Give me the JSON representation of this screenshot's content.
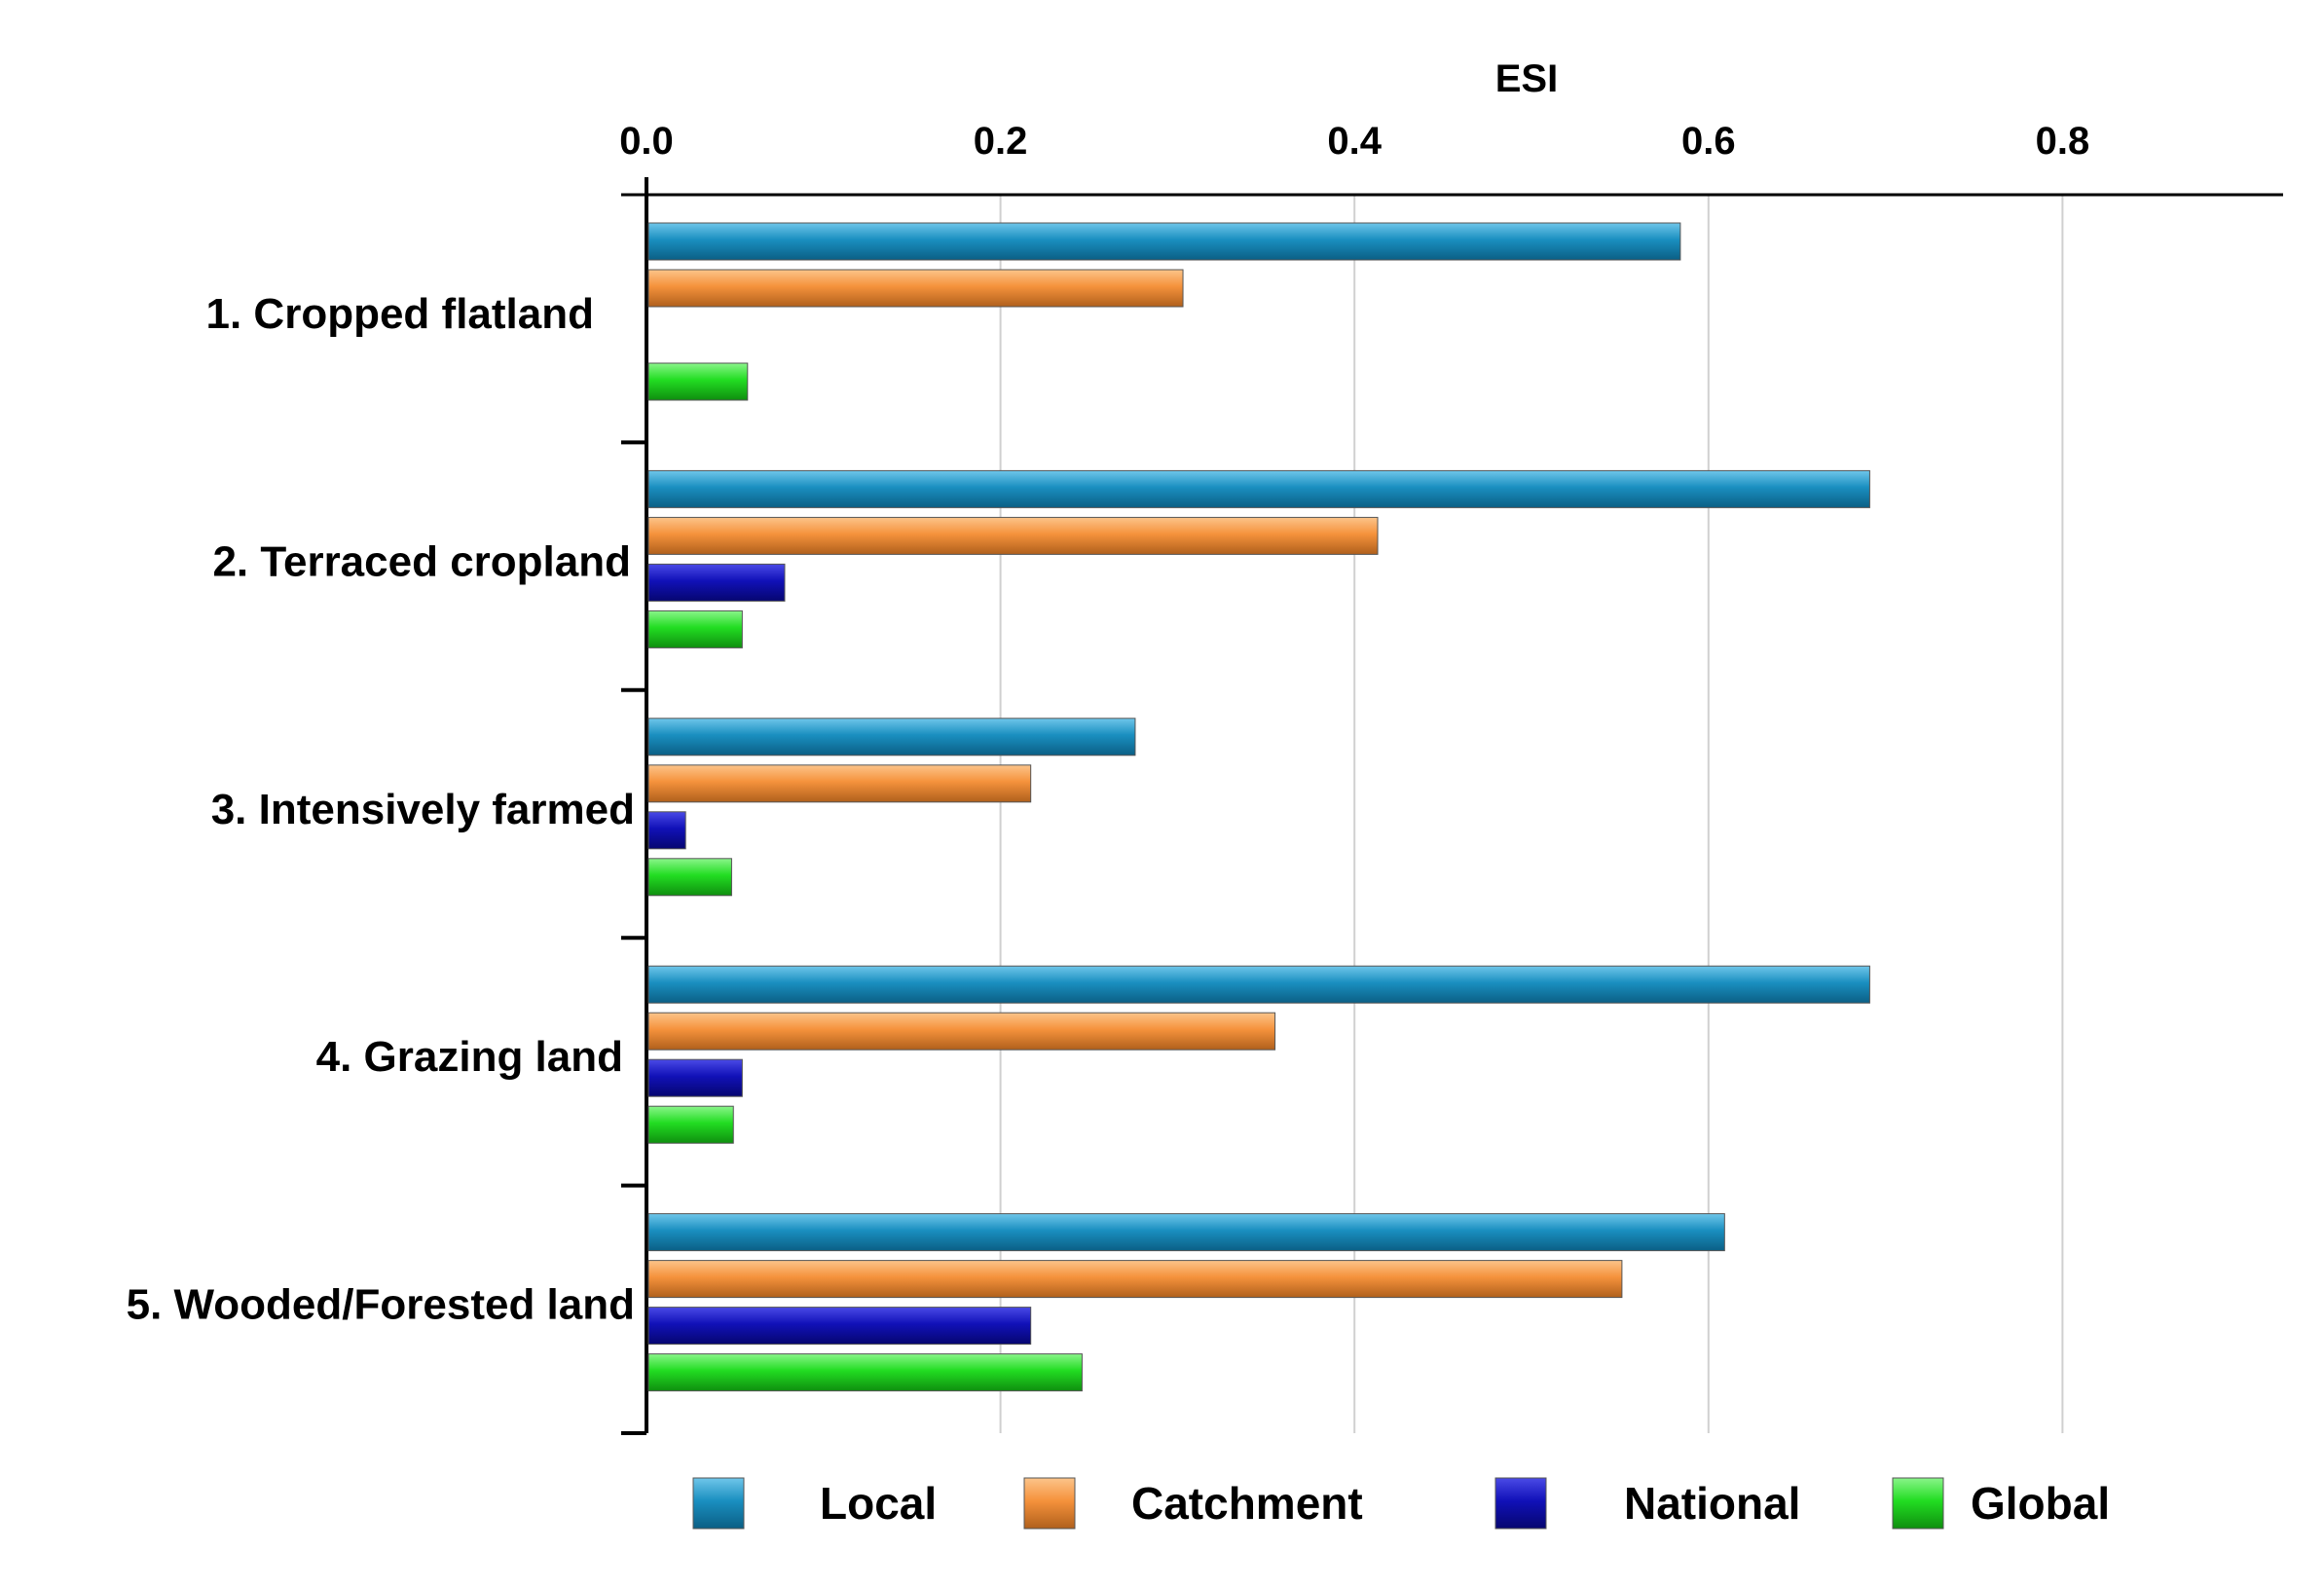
{
  "chart_data": {
    "type": "bar",
    "orientation": "horizontal",
    "title": "",
    "xlabel": "ESI",
    "ylabel": "",
    "xlim": [
      0,
      0.93
    ],
    "xticks": [
      0.0,
      0.2,
      0.4,
      0.6,
      0.8
    ],
    "xtick_labels": [
      "0.0",
      "0.2",
      "0.4",
      "0.6",
      "0.8"
    ],
    "grid": true,
    "legend_position": "bottom",
    "categories": [
      "1. Cropped flatland",
      "2. Terraced cropland",
      "3. Intensively farmed",
      "4. Grazing land",
      "5. Wooded/Forested land"
    ],
    "series": [
      {
        "name": "Local",
        "color": "#1a8fc0",
        "values": [
          0.583,
          0.69,
          0.275,
          0.69,
          0.608
        ]
      },
      {
        "name": "Catchment",
        "color": "#f5923c",
        "values": [
          0.302,
          0.412,
          0.216,
          0.354,
          0.55
        ]
      },
      {
        "name": "National",
        "color": "#1111b8",
        "values": [
          0,
          0.077,
          0.021,
          0.053,
          0.216
        ]
      },
      {
        "name": "Global",
        "color": "#22dd22",
        "values": [
          0.056,
          0.053,
          0.047,
          0.048,
          0.245
        ]
      }
    ]
  }
}
